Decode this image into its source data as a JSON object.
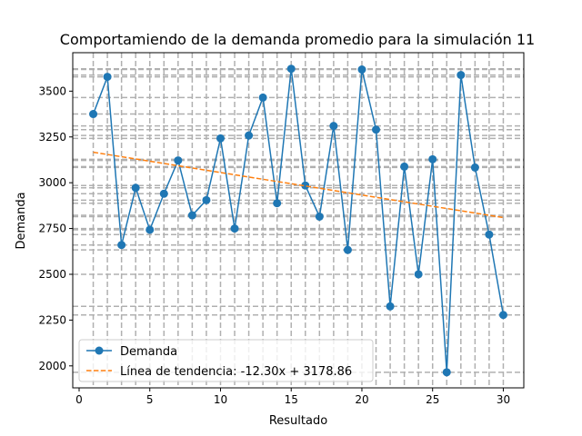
{
  "chart_data": {
    "type": "line",
    "title": "Comportamiendo de la demanda promedio para la simulación 11",
    "xlabel": "Resultado",
    "ylabel": "Demanda",
    "xlim": [
      -0.45,
      31.45
    ],
    "ylim": [
      1880,
      3710
    ],
    "xticks": [
      0,
      5,
      10,
      15,
      20,
      25,
      30
    ],
    "yticks": [
      2000,
      2250,
      2500,
      2750,
      3000,
      3250,
      3500
    ],
    "grid": "dashed gray lines at every data point (x and y)",
    "legend_position": "lower-left",
    "x": [
      1,
      2,
      3,
      4,
      5,
      6,
      7,
      8,
      9,
      10,
      11,
      12,
      13,
      14,
      15,
      16,
      17,
      18,
      19,
      20,
      21,
      22,
      23,
      24,
      25,
      26,
      27,
      28,
      29,
      30
    ],
    "series": [
      {
        "name": "Demanda",
        "color": "#1f77b4",
        "marker": "circle",
        "values": [
          3375,
          3578,
          2660,
          2972,
          2743,
          2940,
          3122,
          2822,
          2905,
          3242,
          2750,
          3258,
          3465,
          2888,
          3622,
          2985,
          2815,
          3310,
          2633,
          3618,
          3290,
          2325,
          3088,
          2500,
          3128,
          1965,
          3588,
          3083,
          2717,
          2278
        ]
      },
      {
        "name": "Línea de tendencia: -12.30x + 3178.86",
        "color": "#ff7f0e",
        "style": "dashed",
        "slope": -12.3,
        "intercept": 3178.86
      }
    ]
  }
}
